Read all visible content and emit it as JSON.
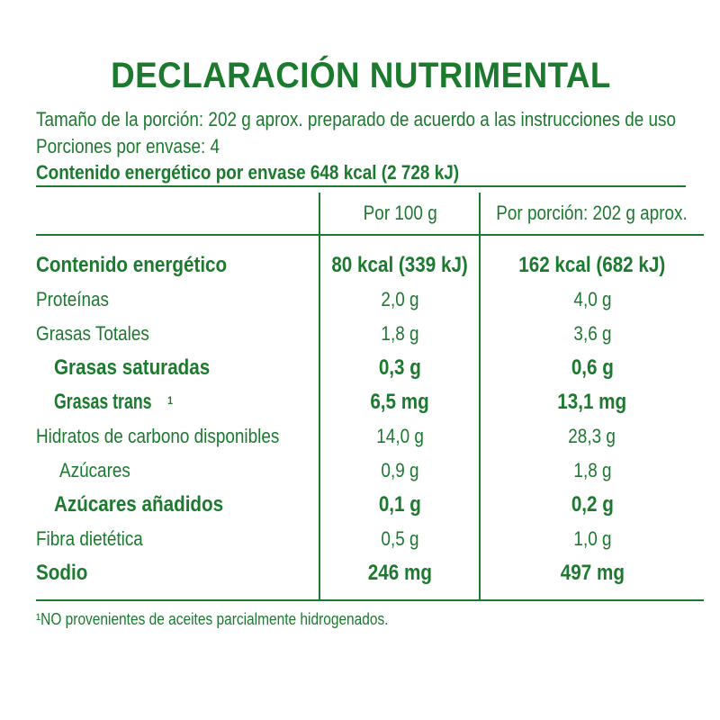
{
  "title": "DECLARACIÓN NUTRIMENTAL",
  "serving_size": "Tamaño de la porción: 202 g aprox. preparado de acuerdo a las instrucciones de uso",
  "servings_per_container": "Porciones por envase: 4",
  "energy_per_container": "Contenido energético por envase 648 kcal (2 728 kJ)",
  "table": {
    "headers": [
      "",
      "Por 100 g",
      "Por porción: 202 g aprox."
    ],
    "rows": [
      {
        "label": "Contenido energético",
        "per100": "80 kcal (339 kJ)",
        "perServing": "162 kcal (682 kJ)"
      },
      {
        "label": "Proteínas",
        "per100": "2,0 g",
        "perServing": "4,0 g"
      },
      {
        "label": "Grasas Totales",
        "per100": "1,8 g",
        "perServing": "3,6 g"
      },
      {
        "label": "Grasas saturadas",
        "per100": "0,3 g",
        "perServing": "0,6 g"
      },
      {
        "label": "Grasas trans",
        "sup": "1",
        "per100": "6,5 mg",
        "perServing": "13,1 mg"
      },
      {
        "label": "Hidratos de carbono disponibles",
        "per100": "14,0 g",
        "perServing": "28,3 g"
      },
      {
        "label": "Azúcares",
        "per100": "0,9 g",
        "perServing": "1,8 g"
      },
      {
        "label": "Azúcares añadidos",
        "per100": "0,1 g",
        "perServing": "0,2 g"
      },
      {
        "label": "Fibra dietética",
        "per100": "0,5 g",
        "perServing": "1,0 g"
      },
      {
        "label": "Sodio",
        "per100": "246 mg",
        "perServing": "497 mg"
      }
    ]
  },
  "footnote": "¹NO provenientes de aceites parcialmente hidrogenados.",
  "colors": {
    "text": "#1b7a2e",
    "background": "#ffffff"
  }
}
